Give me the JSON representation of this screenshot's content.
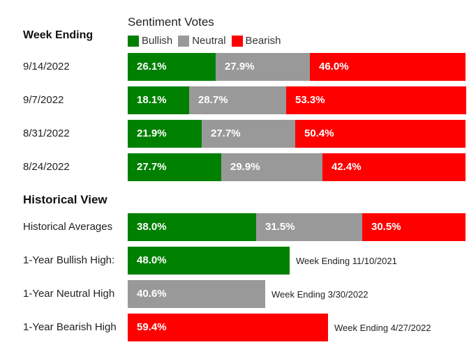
{
  "chart_data": [
    {
      "type": "bar",
      "stacked": true,
      "orientation": "horizontal",
      "title": "Sentiment Votes",
      "row_header": "Week Ending",
      "categories": [
        "9/14/2022",
        "9/7/2022",
        "8/31/2022",
        "8/24/2022"
      ],
      "series": [
        {
          "name": "Bullish",
          "color": "#008000",
          "values": [
            26.1,
            18.1,
            21.9,
            27.7
          ],
          "labels": [
            "26.1%",
            "18.1%",
            "21.9%",
            "27.7%"
          ]
        },
        {
          "name": "Neutral",
          "color": "#999999",
          "values": [
            27.9,
            28.7,
            27.7,
            29.9
          ],
          "labels": [
            "27.9%",
            "28.7%",
            "27.7%",
            "29.9%"
          ]
        },
        {
          "name": "Bearish",
          "color": "#ff0000",
          "values": [
            46.0,
            53.3,
            50.4,
            42.4
          ],
          "labels": [
            "46.0%",
            "53.3%",
            "50.4%",
            "42.4%"
          ]
        }
      ],
      "xlim": [
        0,
        100
      ],
      "legend": "top"
    },
    {
      "type": "bar",
      "orientation": "horizontal",
      "title": "Historical View",
      "rows": [
        {
          "label": "Historical Averages",
          "segments": [
            {
              "series": "Bullish",
              "color": "#008000",
              "value": 38.0,
              "text": "38.0%"
            },
            {
              "series": "Neutral",
              "color": "#999999",
              "value": 31.5,
              "text": "31.5%"
            },
            {
              "series": "Bearish",
              "color": "#ff0000",
              "value": 30.5,
              "text": "30.5%"
            }
          ],
          "note": ""
        },
        {
          "label": "1-Year Bullish High:",
          "segments": [
            {
              "series": "Bullish",
              "color": "#008000",
              "value": 48.0,
              "text": "48.0%"
            }
          ],
          "note": "Week Ending 11/10/2021"
        },
        {
          "label": "1-Year Neutral High",
          "segments": [
            {
              "series": "Neutral",
              "color": "#999999",
              "value": 40.6,
              "text": "40.6%"
            }
          ],
          "note": "Week Ending 3/30/2022"
        },
        {
          "label": "1-Year Bearish High",
          "segments": [
            {
              "series": "Bearish",
              "color": "#ff0000",
              "value": 59.4,
              "text": "59.4%"
            }
          ],
          "note": "Week Ending 4/27/2022"
        }
      ],
      "xlim": [
        0,
        100
      ]
    }
  ]
}
